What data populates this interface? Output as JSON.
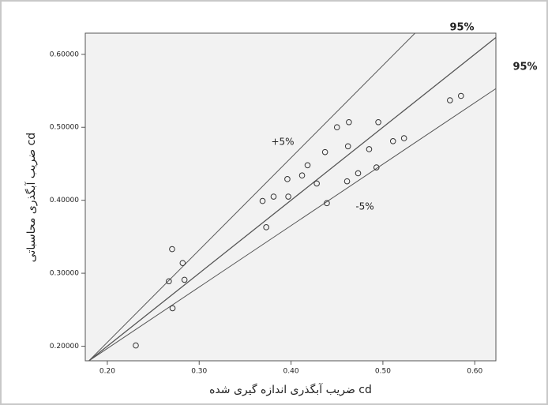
{
  "chart_data": {
    "type": "scatter",
    "x_label": "ضریب آبگذری اندازه گیری شده cd",
    "y_label": "ضریب آبگذری محاسباتی cd",
    "x": [
      0.2705,
      0.282,
      0.267,
      0.284,
      0.271,
      0.231,
      0.369,
      0.381,
      0.373,
      0.396,
      0.397,
      0.412,
      0.418,
      0.428,
      0.437,
      0.439,
      0.45,
      0.463,
      0.462,
      0.461,
      0.473,
      0.485,
      0.493,
      0.495,
      0.511,
      0.523,
      0.573,
      0.585
    ],
    "values": [
      0.333,
      0.314,
      0.289,
      0.291,
      0.252,
      0.201,
      0.399,
      0.405,
      0.363,
      0.429,
      0.405,
      0.434,
      0.448,
      0.423,
      0.466,
      0.396,
      0.5,
      0.507,
      0.474,
      0.426,
      0.437,
      0.47,
      0.445,
      0.507,
      0.481,
      0.485,
      0.537,
      0.543
    ],
    "color": "#333333",
    "reference_lines": [
      {
        "x": [
          0.18,
          0.535
        ],
        "y": [
          0.18,
          0.629
        ],
        "label": "+5%",
        "end_label": "95%"
      },
      {
        "x": [
          0.18,
          0.623
        ],
        "y": [
          0.18,
          0.623
        ],
        "end_label": "95%"
      },
      {
        "x": [
          0.18,
          0.623
        ],
        "y": [
          0.18,
          0.553
        ],
        "label": "-5%"
      }
    ],
    "xlim": [
      0.176,
      0.623
    ],
    "ylim": [
      0.18,
      0.629
    ],
    "xticks": [
      {
        "value": 0.2,
        "label": "0.20"
      },
      {
        "value": 0.3,
        "label": "0.30"
      },
      {
        "value": 0.4,
        "label": "0.40"
      },
      {
        "value": 0.5,
        "label": "0.50"
      },
      {
        "value": 0.6,
        "label": "0.60"
      }
    ],
    "yticks": [
      {
        "value": 0.2,
        "label": "0.20000"
      },
      {
        "value": 0.3,
        "label": "0.30000"
      },
      {
        "value": 0.4,
        "label": "0.40000"
      },
      {
        "value": 0.5,
        "label": "0.50000"
      },
      {
        "value": 0.6,
        "label": "0.60000"
      }
    ]
  }
}
